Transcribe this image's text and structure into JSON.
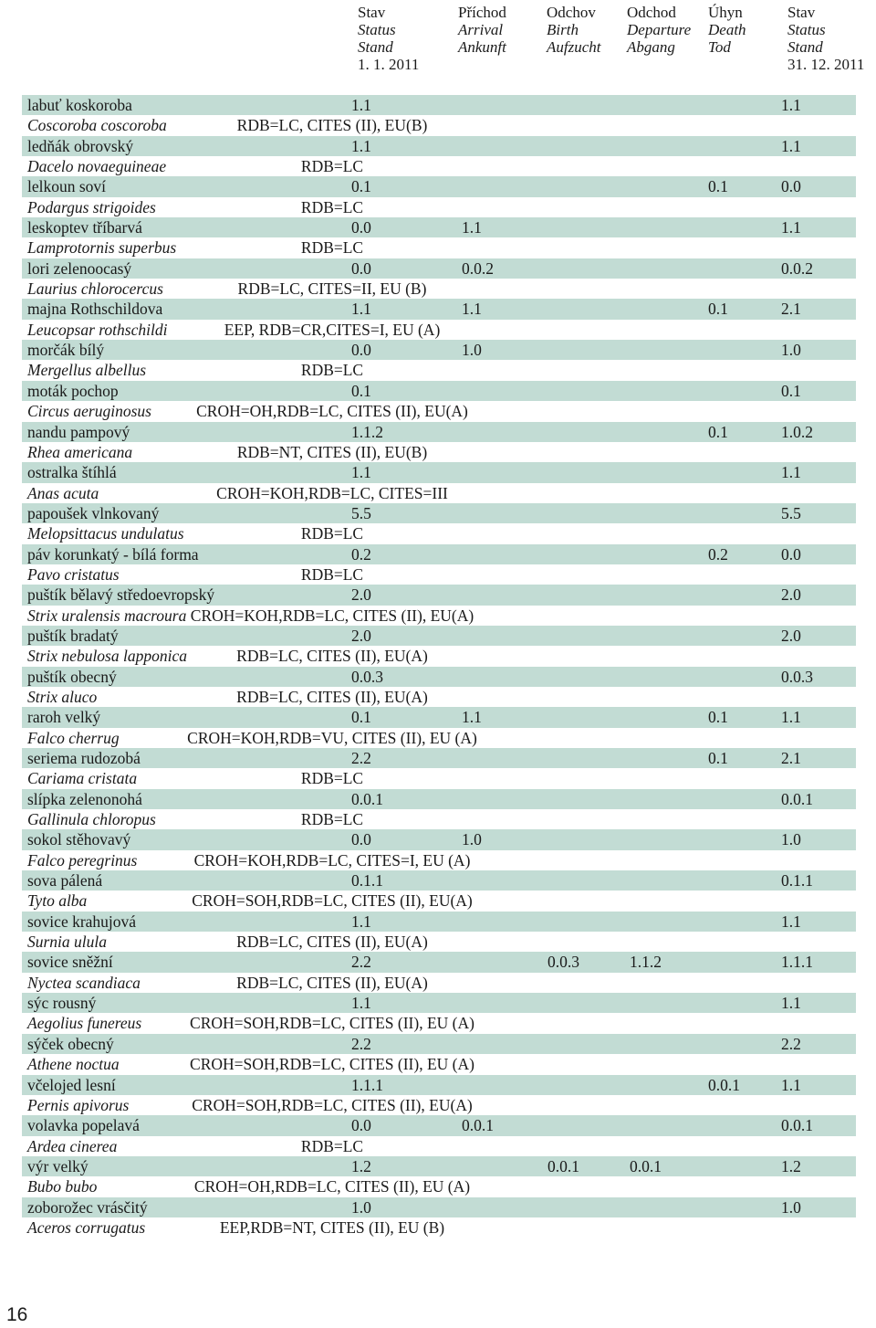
{
  "header": {
    "columns": [
      {
        "l1": "Stav",
        "l2": "Status",
        "l3": "Stand",
        "l4": "1. 1. 2011"
      },
      {
        "l1": "Příchod",
        "l2": "Arrival",
        "l3": "Ankunft",
        "l4": ""
      },
      {
        "l1": "Odchov",
        "l2": "Birth",
        "l3": "Aufzucht",
        "l4": ""
      },
      {
        "l1": "Odchod",
        "l2": "Departure",
        "l3": "Abgang",
        "l4": ""
      },
      {
        "l1": "Úhyn",
        "l2": "Death",
        "l3": "Tod",
        "l4": ""
      },
      {
        "l1": "Stav",
        "l2": "Status",
        "l3": "Stand",
        "l4": "31. 12. 2011"
      }
    ]
  },
  "rows": [
    {
      "name": "labuť koskoroba",
      "latin": "Coscoroba coscoroba",
      "status": "RDB=LC, CITES (II), EU(B)",
      "values": [
        "1.1",
        "",
        "",
        "",
        "",
        "1.1"
      ]
    },
    {
      "name": "ledňák obrovský",
      "latin": "Dacelo novaeguineae",
      "status": "RDB=LC",
      "values": [
        "1.1",
        "",
        "",
        "",
        "",
        "1.1"
      ]
    },
    {
      "name": "lelkoun soví",
      "latin": "Podargus strigoides",
      "status": "RDB=LC",
      "values": [
        "0.1",
        "",
        "",
        "",
        "0.1",
        "0.0"
      ]
    },
    {
      "name": "leskoptev tříbarvá",
      "latin": "Lamprotornis superbus",
      "status": "RDB=LC",
      "values": [
        "0.0",
        "1.1",
        "",
        "",
        "",
        "1.1"
      ]
    },
    {
      "name": "lori zelenoocasý",
      "latin": "Laurius chlorocercus",
      "status": "RDB=LC, CITES=II, EU (B)",
      "values": [
        "0.0",
        "0.0.2",
        "",
        "",
        "",
        "0.0.2"
      ]
    },
    {
      "name": "majna Rothschildova",
      "latin": "Leucopsar rothschildi",
      "status": "EEP, RDB=CR,CITES=I, EU (A)",
      "values": [
        "1.1",
        "1.1",
        "",
        "",
        "0.1",
        "2.1"
      ]
    },
    {
      "name": "morčák bílý",
      "latin": "Mergellus albellus",
      "status": "RDB=LC",
      "values": [
        "0.0",
        "1.0",
        "",
        "",
        "",
        "1.0"
      ]
    },
    {
      "name": "moták pochop",
      "latin": "Circus aeruginosus",
      "status": "CROH=OH,RDB=LC, CITES (II), EU(A)",
      "values": [
        "0.1",
        "",
        "",
        "",
        "",
        "0.1"
      ]
    },
    {
      "name": "nandu pampový",
      "latin": "Rhea americana",
      "status": "RDB=NT, CITES (II), EU(B)",
      "values": [
        "1.1.2",
        "",
        "",
        "",
        "0.1",
        "1.0.2"
      ]
    },
    {
      "name": "ostralka štíhlá",
      "latin": "Anas acuta",
      "status": "CROH=KOH,RDB=LC, CITES=III",
      "values": [
        "1.1",
        "",
        "",
        "",
        "",
        "1.1"
      ]
    },
    {
      "name": "papoušek vlnkovaný",
      "latin": "Melopsittacus undulatus",
      "status": "RDB=LC",
      "values": [
        "5.5",
        "",
        "",
        "",
        "",
        "5.5"
      ]
    },
    {
      "name": "páv korunkatý - bílá forma",
      "latin": "Pavo cristatus",
      "status": "RDB=LC",
      "values": [
        "0.2",
        "",
        "",
        "",
        "0.2",
        "0.0"
      ]
    },
    {
      "name": "puštík bělavý středoevropský",
      "latin": "Strix uralensis macroura",
      "status": "CROH=KOH,RDB=LC, CITES (II), EU(A)",
      "values": [
        "2.0",
        "",
        "",
        "",
        "",
        "2.0"
      ]
    },
    {
      "name": "puštík bradatý",
      "latin": "Strix nebulosa lapponica",
      "status": "RDB=LC, CITES (II), EU(A)",
      "values": [
        "2.0",
        "",
        "",
        "",
        "",
        "2.0"
      ]
    },
    {
      "name": "puštík obecný",
      "latin": "Strix aluco",
      "status": "RDB=LC, CITES (II), EU(A)",
      "values": [
        "0.0.3",
        "",
        "",
        "",
        "",
        "0.0.3"
      ]
    },
    {
      "name": "raroh velký",
      "latin": "Falco cherrug",
      "status": "CROH=KOH,RDB=VU, CITES (II), EU (A)",
      "values": [
        "0.1",
        "1.1",
        "",
        "",
        "0.1",
        "1.1"
      ]
    },
    {
      "name": "seriema rudozobá",
      "latin": "Cariama cristata",
      "status": "RDB=LC",
      "values": [
        "2.2",
        "",
        "",
        "",
        "0.1",
        "2.1"
      ]
    },
    {
      "name": "slípka zelenonohá",
      "latin": "Gallinula chloropus",
      "status": "RDB=LC",
      "values": [
        "0.0.1",
        "",
        "",
        "",
        "",
        "0.0.1"
      ]
    },
    {
      "name": "sokol stěhovavý",
      "latin": "Falco peregrinus",
      "status": "CROH=KOH,RDB=LC, CITES=I, EU (A)",
      "values": [
        "0.0",
        "1.0",
        "",
        "",
        "",
        "1.0"
      ]
    },
    {
      "name": "sova pálená",
      "latin": "Tyto alba",
      "status": "CROH=SOH,RDB=LC, CITES (II), EU(A)",
      "values": [
        "0.1.1",
        "",
        "",
        "",
        "",
        "0.1.1"
      ]
    },
    {
      "name": "sovice krahujová",
      "latin": "Surnia ulula",
      "status": "RDB=LC, CITES (II), EU(A)",
      "values": [
        "1.1",
        "",
        "",
        "",
        "",
        "1.1"
      ]
    },
    {
      "name": "sovice sněžní",
      "latin": "Nyctea scandiaca",
      "status": "RDB=LC, CITES (II), EU(A)",
      "values": [
        "2.2",
        "",
        "0.0.3",
        "1.1.2",
        "",
        "1.1.1"
      ]
    },
    {
      "name": "sýc rousný",
      "latin": "Aegolius funereus",
      "status": "CROH=SOH,RDB=LC, CITES (II), EU (A)",
      "values": [
        "1.1",
        "",
        "",
        "",
        "",
        "1.1"
      ]
    },
    {
      "name": "sýček obecný",
      "latin": "Athene noctua",
      "status": "CROH=SOH,RDB=LC, CITES (II), EU (A)",
      "values": [
        "2.2",
        "",
        "",
        "",
        "",
        "2.2"
      ]
    },
    {
      "name": "včelojed lesní",
      "latin": "Pernis apivorus",
      "status": "CROH=SOH,RDB=LC, CITES (II), EU(A)",
      "values": [
        "1.1.1",
        "",
        "",
        "",
        "0.0.1",
        "1.1"
      ]
    },
    {
      "name": "volavka popelavá",
      "latin": "Ardea cinerea",
      "status": "RDB=LC",
      "values": [
        "0.0",
        "0.0.1",
        "",
        "",
        "",
        "0.0.1"
      ]
    },
    {
      "name": "výr velký",
      "latin": "Bubo bubo",
      "status": "CROH=OH,RDB=LC, CITES (II), EU (A)",
      "values": [
        "1.2",
        "",
        "0.0.1",
        "0.0.1",
        "",
        "1.2"
      ]
    },
    {
      "name": "zoborožec vrásčitý",
      "latin": "Aceros corrugatus",
      "status": "EEP,RDB=NT, CITES (II), EU (B)",
      "values": [
        "1.0",
        "",
        "",
        "",
        "",
        "1.0"
      ]
    }
  ],
  "page_number": "16"
}
